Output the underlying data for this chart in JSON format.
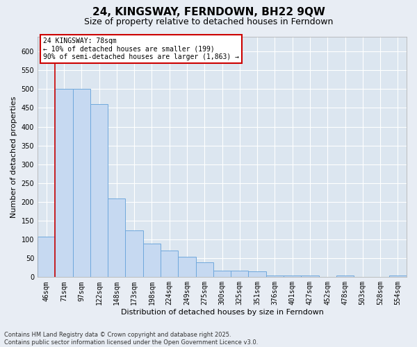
{
  "title": "24, KINGSWAY, FERNDOWN, BH22 9QW",
  "subtitle": "Size of property relative to detached houses in Ferndown",
  "xlabel": "Distribution of detached houses by size in Ferndown",
  "ylabel": "Number of detached properties",
  "categories": [
    "46sqm",
    "71sqm",
    "97sqm",
    "122sqm",
    "148sqm",
    "173sqm",
    "198sqm",
    "224sqm",
    "249sqm",
    "275sqm",
    "300sqm",
    "325sqm",
    "351sqm",
    "376sqm",
    "401sqm",
    "427sqm",
    "452sqm",
    "478sqm",
    "503sqm",
    "528sqm",
    "554sqm"
  ],
  "values": [
    108,
    500,
    500,
    460,
    210,
    125,
    90,
    70,
    55,
    40,
    18,
    18,
    15,
    5,
    5,
    5,
    0,
    5,
    0,
    0,
    5
  ],
  "bar_color": "#c6d9f1",
  "bar_edge_color": "#6fa8dc",
  "red_line_x": 0.5,
  "annotation_title": "24 KINGSWAY: 78sqm",
  "annotation_line2": "← 10% of detached houses are smaller (199)",
  "annotation_line3": "90% of semi-detached houses are larger (1,863) →",
  "annotation_box_facecolor": "#ffffff",
  "annotation_box_edgecolor": "#cc0000",
  "footer_line1": "Contains HM Land Registry data © Crown copyright and database right 2025.",
  "footer_line2": "Contains public sector information licensed under the Open Government Licence v3.0.",
  "ylim_max": 640,
  "yticks": [
    0,
    50,
    100,
    150,
    200,
    250,
    300,
    350,
    400,
    450,
    500,
    550,
    600
  ],
  "fig_bg_color": "#e8edf4",
  "ax_bg_color": "#dce6f0",
  "grid_color": "#ffffff",
  "title_fontsize": 11,
  "subtitle_fontsize": 9,
  "tick_fontsize": 7,
  "axis_label_fontsize": 8,
  "annotation_fontsize": 7,
  "footer_fontsize": 6
}
